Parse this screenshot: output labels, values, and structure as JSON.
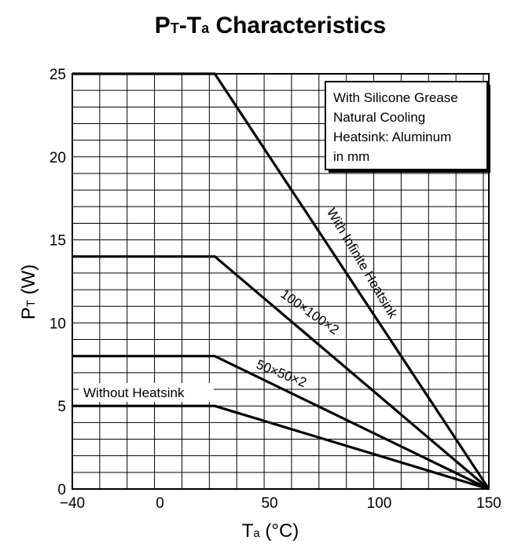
{
  "chart_data": {
    "type": "line",
    "title": {
      "main1": "P",
      "sub1": "T",
      "dash": "-",
      "main2": "T",
      "sub2": "a",
      "rest": " Characteristics"
    },
    "xlabel": {
      "main": "T",
      "sub": "a",
      "units": "  (°C)"
    },
    "ylabel": {
      "main": "P",
      "sub": "T",
      "units": "  (W)"
    },
    "xlim": [
      -40,
      150
    ],
    "ylim": [
      0,
      25
    ],
    "x_ticks": [
      -40,
      0,
      50,
      100,
      150
    ],
    "x_tick_labels": [
      "−40",
      "0",
      "50",
      "100",
      "150"
    ],
    "y_ticks": [
      0,
      5,
      10,
      15,
      20,
      25
    ],
    "y_tick_labels": [
      "0",
      "5",
      "10",
      "15",
      "20",
      "25"
    ],
    "grid": true,
    "grid_x_step": 12.5,
    "grid_y_step": 1,
    "legend_box": {
      "lines": [
        "With Silicone Grease",
        "Natural Cooling",
        "Heatsink: Aluminum",
        "in mm"
      ],
      "position": "top-right"
    },
    "series": [
      {
        "name": "With Infinite Heatsink",
        "x": [
          -40,
          25,
          150
        ],
        "y": [
          25,
          25,
          0
        ]
      },
      {
        "name": "100×100×2",
        "x": [
          -40,
          25,
          150
        ],
        "y": [
          14,
          14,
          0
        ]
      },
      {
        "name": "50×50×2",
        "x": [
          -40,
          25,
          150
        ],
        "y": [
          8,
          8,
          0
        ]
      },
      {
        "name": "Without Heatsink",
        "x": [
          -40,
          25,
          150
        ],
        "y": [
          5,
          5,
          0
        ]
      }
    ]
  }
}
